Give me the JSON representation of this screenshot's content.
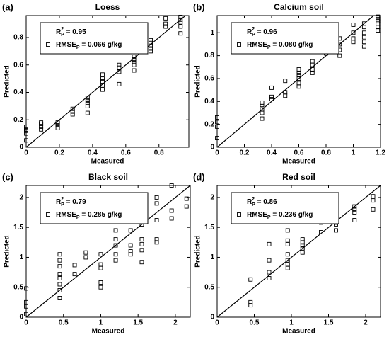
{
  "chart_data": [
    {
      "type": "scatter",
      "panel": "(a)",
      "title": "Loess",
      "x_label": "Measured",
      "y_label": "Predicted",
      "xlim": [
        0,
        0.98
      ],
      "ylim": [
        0,
        0.96
      ],
      "xticks": [
        0,
        0.2,
        0.4,
        0.6,
        0.8
      ],
      "yticks": [
        0,
        0.2,
        0.4,
        0.6,
        0.8
      ],
      "r2_label": {
        "symbol": "R",
        "sup": "2",
        "sub": "P",
        "text": " = 0.95"
      },
      "rmse_label": {
        "symbol": "RMSE",
        "sub": "P",
        "text": " = 0.066 g/kg"
      },
      "color": "#000000",
      "x": [
        0,
        0,
        0,
        0,
        0,
        0.09,
        0.09,
        0.09,
        0.09,
        0.19,
        0.19,
        0.19,
        0.19,
        0.28,
        0.28,
        0.28,
        0.37,
        0.37,
        0.37,
        0.37,
        0.37,
        0.46,
        0.46,
        0.46,
        0.46,
        0.46,
        0.56,
        0.56,
        0.56,
        0.56,
        0.65,
        0.65,
        0.65,
        0.65,
        0.65,
        0.65,
        0.75,
        0.75,
        0.75,
        0.75,
        0.75,
        0.84,
        0.84,
        0.84,
        0.93,
        0.93,
        0.93,
        0.93,
        0.93
      ],
      "values": [
        0.05,
        0.1,
        0.12,
        0.13,
        0.15,
        0.13,
        0.15,
        0.17,
        0.18,
        0.14,
        0.16,
        0.17,
        0.18,
        0.24,
        0.26,
        0.28,
        0.25,
        0.3,
        0.32,
        0.34,
        0.36,
        0.42,
        0.45,
        0.48,
        0.5,
        0.53,
        0.46,
        0.55,
        0.58,
        0.6,
        0.56,
        0.6,
        0.62,
        0.64,
        0.66,
        0.7,
        0.7,
        0.72,
        0.74,
        0.76,
        0.78,
        0.88,
        0.9,
        0.94,
        0.83,
        0.88,
        0.91,
        0.93,
        0.95
      ]
    },
    {
      "type": "scatter",
      "panel": "(b)",
      "title": "Calcium soil",
      "x_label": "Measured",
      "y_label": "Predicted",
      "xlim": [
        0,
        1.2
      ],
      "ylim": [
        0,
        1.15
      ],
      "xticks": [
        0,
        0.2,
        0.4,
        0.6,
        0.8,
        1,
        1.2
      ],
      "yticks": [
        0,
        0.2,
        0.4,
        0.6,
        0.8,
        1
      ],
      "r2_label": {
        "symbol": "R",
        "sup": "2",
        "sub": "P",
        "text": " = 0.96"
      },
      "rmse_label": {
        "symbol": "RMSE",
        "sub": "P",
        "text": " = 0.080 g/kg"
      },
      "color": "#000000",
      "x": [
        0,
        0,
        0,
        0,
        0.33,
        0.33,
        0.33,
        0.33,
        0.33,
        0.4,
        0.4,
        0.4,
        0.5,
        0.5,
        0.5,
        0.6,
        0.6,
        0.6,
        0.6,
        0.6,
        0.6,
        0.7,
        0.7,
        0.7,
        0.7,
        0.8,
        0.8,
        0.8,
        0.9,
        0.9,
        0.9,
        0.9,
        1.0,
        1.0,
        1.0,
        1.0,
        1.08,
        1.08,
        1.08,
        1.08,
        1.08,
        1.08,
        1.18,
        1.18,
        1.18,
        1.18,
        1.18,
        1.18
      ],
      "values": [
        0.08,
        0.18,
        0.22,
        0.26,
        0.25,
        0.3,
        0.33,
        0.37,
        0.39,
        0.42,
        0.44,
        0.52,
        0.45,
        0.48,
        0.58,
        0.53,
        0.56,
        0.6,
        0.63,
        0.65,
        0.68,
        0.65,
        0.68,
        0.72,
        0.75,
        0.82,
        0.86,
        0.9,
        0.8,
        0.85,
        0.9,
        0.95,
        0.92,
        0.95,
        1.0,
        1.07,
        0.88,
        0.92,
        0.96,
        1.0,
        1.05,
        1.08,
        1.02,
        1.05,
        1.08,
        1.1,
        1.12,
        1.14
      ]
    },
    {
      "type": "scatter",
      "panel": "(c)",
      "title": "Black soil",
      "x_label": "Measured",
      "y_label": "Predicted",
      "xlim": [
        0,
        2.2
      ],
      "ylim": [
        0,
        2.2
      ],
      "xticks": [
        0,
        0.5,
        1,
        1.5,
        2
      ],
      "yticks": [
        0,
        0.5,
        1,
        1.5,
        2
      ],
      "r2_label": {
        "symbol": "R",
        "sup": "2",
        "sub": "P",
        "text": " = 0.79"
      },
      "rmse_label": {
        "symbol": "RMSE",
        "sub": "P",
        "text": " = 0.285 g/kg"
      },
      "color": "#000000",
      "x": [
        0,
        0,
        0,
        0,
        0.45,
        0.45,
        0.45,
        0.45,
        0.45,
        0.45,
        0.45,
        0.45,
        0.65,
        0.65,
        0.8,
        0.8,
        1.0,
        1.0,
        1.0,
        1.0,
        1.0,
        1.2,
        1.2,
        1.2,
        1.2,
        1.2,
        1.4,
        1.4,
        1.4,
        1.4,
        1.55,
        1.55,
        1.55,
        1.55,
        1.55,
        1.55,
        1.55,
        1.75,
        1.75,
        1.75,
        1.75,
        1.75,
        1.95,
        1.95,
        1.95,
        2.15,
        2.15
      ],
      "values": [
        0.05,
        0.18,
        0.25,
        0.48,
        0.32,
        0.45,
        0.55,
        0.65,
        0.72,
        0.85,
        0.95,
        1.05,
        0.72,
        0.87,
        1.0,
        1.08,
        0.5,
        0.58,
        0.82,
        0.88,
        1.05,
        0.95,
        1.05,
        1.2,
        1.3,
        1.45,
        1.05,
        1.1,
        1.2,
        1.45,
        0.92,
        1.12,
        1.22,
        1.3,
        1.55,
        1.8,
        1.85,
        1.25,
        1.3,
        1.62,
        1.9,
        2.0,
        1.65,
        1.78,
        2.2,
        1.85,
        1.98
      ]
    },
    {
      "type": "scatter",
      "panel": "(d)",
      "title": "Red soil",
      "x_label": "Measured",
      "y_label": "Predicted",
      "xlim": [
        0,
        2.2
      ],
      "ylim": [
        0,
        2.2
      ],
      "xticks": [
        0,
        0.5,
        1,
        1.5,
        2
      ],
      "yticks": [
        0,
        0.5,
        1,
        1.5,
        2
      ],
      "r2_label": {
        "symbol": "R",
        "sup": "2",
        "sub": "P",
        "text": " = 0.86"
      },
      "rmse_label": {
        "symbol": "RMSE",
        "sub": "P",
        "text": " = 0.236 g/kg"
      },
      "color": "#000000",
      "x": [
        0.45,
        0.45,
        0.45,
        0.7,
        0.7,
        0.7,
        0.7,
        0.95,
        0.95,
        0.95,
        0.95,
        0.95,
        0.95,
        0.95,
        1.15,
        1.15,
        1.15,
        1.15,
        1.15,
        1.4,
        1.4,
        1.4,
        1.4,
        1.4,
        1.6,
        1.6,
        1.6,
        1.6,
        1.85,
        1.85,
        1.85,
        1.85,
        2.1,
        2.1,
        2.1
      ],
      "values": [
        0.2,
        0.25,
        0.63,
        0.65,
        0.75,
        0.95,
        1.22,
        0.82,
        0.88,
        0.95,
        1.05,
        1.22,
        1.28,
        1.45,
        1.08,
        1.15,
        1.2,
        1.25,
        1.3,
        1.42,
        1.58,
        1.65,
        1.72,
        1.78,
        1.45,
        1.55,
        1.58,
        1.62,
        1.62,
        1.75,
        1.8,
        1.85,
        1.8,
        1.95,
        2.02
      ]
    }
  ]
}
